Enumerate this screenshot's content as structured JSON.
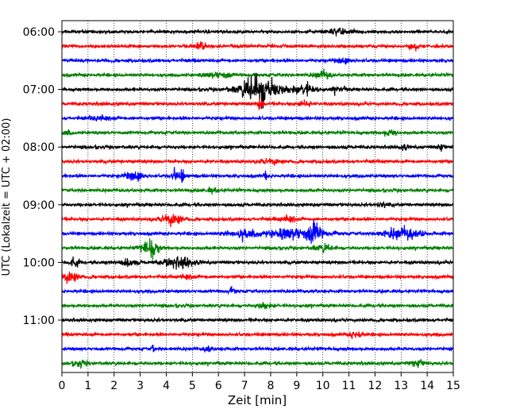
{
  "chart_data": {
    "type": "line",
    "title": "",
    "xlabel": "Zeit  [min]",
    "ylabel": "UTC (Lokalzeit = UTC + 02:00)",
    "xlim": [
      0,
      15
    ],
    "x_ticks": [
      "0",
      "1",
      "2",
      "3",
      "4",
      "5",
      "6",
      "7",
      "8",
      "9",
      "10",
      "11",
      "12",
      "13",
      "14",
      "15"
    ],
    "grid_x": true,
    "y_tick_labels": [
      "06:00",
      "07:00",
      "08:00",
      "09:00",
      "10:00",
      "11:00"
    ],
    "trace_colors": [
      "#000000",
      "#ff0000",
      "#0000ff",
      "#008000"
    ],
    "traces_per_hour": 4,
    "trace_count": 24,
    "series": [
      {
        "start": "06:00",
        "color": "black",
        "events": [
          {
            "t": 10.6,
            "amp": 0.4,
            "dur": 0.8
          }
        ]
      },
      {
        "start": "06:15",
        "color": "red",
        "events": [
          {
            "t": 5.3,
            "amp": 0.5,
            "dur": 0.5
          },
          {
            "t": 13.5,
            "amp": 0.45,
            "dur": 0.4
          }
        ]
      },
      {
        "start": "06:30",
        "color": "blue",
        "events": [
          {
            "t": 10.8,
            "amp": 0.4,
            "dur": 0.6
          }
        ]
      },
      {
        "start": "06:45",
        "color": "green",
        "events": [
          {
            "t": 6.0,
            "amp": 0.4,
            "dur": 1.0
          },
          {
            "t": 10.0,
            "amp": 0.45,
            "dur": 0.6
          }
        ]
      },
      {
        "start": "07:00",
        "color": "black",
        "events": [
          {
            "t": 7.6,
            "amp": 2.0,
            "dur": 1.5
          },
          {
            "t": 9.3,
            "amp": 0.7,
            "dur": 0.8
          },
          {
            "t": 10.6,
            "amp": 0.35,
            "dur": 0.5
          }
        ]
      },
      {
        "start": "07:15",
        "color": "red",
        "events": [
          {
            "t": 7.6,
            "amp": 0.9,
            "dur": 0.2
          },
          {
            "t": 9.3,
            "amp": 0.35,
            "dur": 0.5
          }
        ]
      },
      {
        "start": "07:30",
        "color": "blue",
        "events": [
          {
            "t": 1.5,
            "amp": 0.3,
            "dur": 0.8
          }
        ]
      },
      {
        "start": "07:45",
        "color": "green",
        "events": [
          {
            "t": 0.2,
            "amp": 0.3,
            "dur": 0.4
          },
          {
            "t": 12.6,
            "amp": 0.35,
            "dur": 0.5
          }
        ]
      },
      {
        "start": "08:00",
        "color": "black",
        "events": [
          {
            "t": 13.1,
            "amp": 0.4,
            "dur": 0.3
          },
          {
            "t": 14.5,
            "amp": 0.5,
            "dur": 0.2
          }
        ]
      },
      {
        "start": "08:15",
        "color": "red",
        "events": [
          {
            "t": 8.0,
            "amp": 0.35,
            "dur": 0.8
          }
        ]
      },
      {
        "start": "08:30",
        "color": "blue",
        "events": [
          {
            "t": 2.8,
            "amp": 0.7,
            "dur": 0.7
          },
          {
            "t": 4.3,
            "amp": 0.8,
            "dur": 0.2
          },
          {
            "t": 4.6,
            "amp": 0.8,
            "dur": 0.2
          },
          {
            "t": 7.8,
            "amp": 0.8,
            "dur": 0.1
          }
        ]
      },
      {
        "start": "08:45",
        "color": "green",
        "events": [
          {
            "t": 5.8,
            "amp": 0.35,
            "dur": 0.4
          }
        ]
      },
      {
        "start": "09:00",
        "color": "black",
        "events": [
          {
            "t": 12.3,
            "amp": 0.3,
            "dur": 0.4
          }
        ]
      },
      {
        "start": "09:15",
        "color": "red",
        "events": [
          {
            "t": 4.2,
            "amp": 0.8,
            "dur": 0.8
          },
          {
            "t": 8.7,
            "amp": 0.45,
            "dur": 0.6
          }
        ]
      },
      {
        "start": "09:30",
        "color": "blue",
        "events": [
          {
            "t": 7.0,
            "amp": 0.55,
            "dur": 1.2
          },
          {
            "t": 9.0,
            "amp": 0.8,
            "dur": 2.0
          },
          {
            "t": 9.7,
            "amp": 1.3,
            "dur": 0.4
          },
          {
            "t": 13.1,
            "amp": 0.7,
            "dur": 1.5
          }
        ]
      },
      {
        "start": "09:45",
        "color": "green",
        "events": [
          {
            "t": 3.4,
            "amp": 1.3,
            "dur": 0.6
          },
          {
            "t": 10.0,
            "amp": 0.5,
            "dur": 0.6
          }
        ]
      },
      {
        "start": "10:00",
        "color": "black",
        "events": [
          {
            "t": 0.5,
            "amp": 0.5,
            "dur": 0.4
          },
          {
            "t": 2.5,
            "amp": 0.4,
            "dur": 0.8
          },
          {
            "t": 4.5,
            "amp": 0.7,
            "dur": 1.2
          }
        ]
      },
      {
        "start": "10:15",
        "color": "red",
        "events": [
          {
            "t": 0.3,
            "amp": 0.8,
            "dur": 0.6
          },
          {
            "t": 4.8,
            "amp": 0.3,
            "dur": 0.5
          }
        ]
      },
      {
        "start": "10:30",
        "color": "blue",
        "events": [
          {
            "t": 6.5,
            "amp": 0.3,
            "dur": 0.4
          }
        ]
      },
      {
        "start": "10:45",
        "color": "green",
        "events": [
          {
            "t": 7.7,
            "amp": 0.35,
            "dur": 0.6
          }
        ]
      },
      {
        "start": "11:00",
        "color": "black",
        "events": []
      },
      {
        "start": "11:15",
        "color": "red",
        "events": [
          {
            "t": 11.3,
            "amp": 0.5,
            "dur": 0.5
          }
        ]
      },
      {
        "start": "11:30",
        "color": "blue",
        "events": [
          {
            "t": 3.5,
            "amp": 0.6,
            "dur": 0.1
          },
          {
            "t": 5.6,
            "amp": 0.45,
            "dur": 0.3
          }
        ]
      },
      {
        "start": "11:45",
        "color": "green",
        "events": [
          {
            "t": 0.7,
            "amp": 0.4,
            "dur": 0.5
          },
          {
            "t": 13.6,
            "amp": 0.45,
            "dur": 0.5
          }
        ]
      }
    ]
  }
}
